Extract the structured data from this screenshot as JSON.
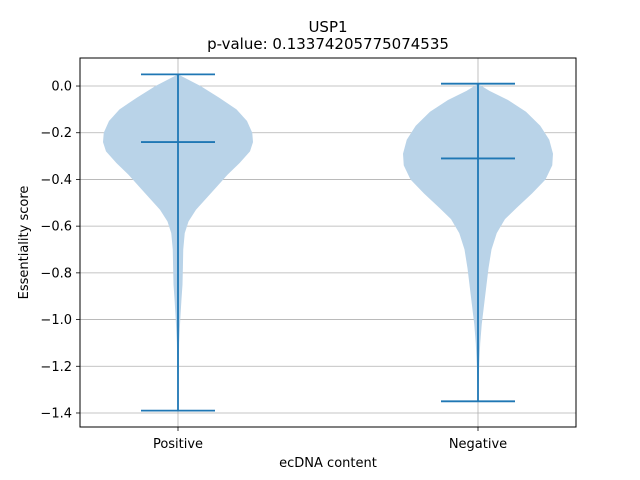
{
  "chart_data": {
    "type": "violin",
    "title": "USP1",
    "subtitle": "p-value: 0.13374205775074535",
    "xlabel": "ecDNA content",
    "ylabel": "Essentiality score",
    "ylim": [
      -1.46,
      0.12
    ],
    "yticks": [
      0.0,
      -0.2,
      -0.4,
      -0.6,
      -0.8,
      -1.0,
      -1.2,
      -1.4
    ],
    "ytick_labels": [
      "0.0",
      "−0.2",
      "−0.4",
      "−0.6",
      "−0.8",
      "−1.0",
      "−1.2",
      "−1.4"
    ],
    "categories": [
      "Positive",
      "Negative"
    ],
    "grid": true,
    "fill_color": "#b9d3e8",
    "line_color": "#1f77b4",
    "series": [
      {
        "category": "Positive",
        "max": 0.05,
        "median": -0.24,
        "min": -1.39,
        "density": [
          [
            0.05,
            0.0
          ],
          [
            0.03,
            0.12
          ],
          [
            0.0,
            0.3
          ],
          [
            -0.05,
            0.55
          ],
          [
            -0.1,
            0.78
          ],
          [
            -0.15,
            0.92
          ],
          [
            -0.2,
            0.99
          ],
          [
            -0.24,
            1.0
          ],
          [
            -0.28,
            0.96
          ],
          [
            -0.33,
            0.82
          ],
          [
            -0.38,
            0.66
          ],
          [
            -0.43,
            0.52
          ],
          [
            -0.48,
            0.38
          ],
          [
            -0.53,
            0.24
          ],
          [
            -0.58,
            0.14
          ],
          [
            -0.63,
            0.09
          ],
          [
            -0.7,
            0.07
          ],
          [
            -0.78,
            0.065
          ],
          [
            -0.85,
            0.06
          ],
          [
            -0.92,
            0.045
          ],
          [
            -1.0,
            0.03
          ],
          [
            -1.1,
            0.015
          ],
          [
            -1.2,
            0.01
          ],
          [
            -1.3,
            0.006
          ],
          [
            -1.39,
            0.003
          ]
        ]
      },
      {
        "category": "Negative",
        "max": 0.01,
        "median": -0.31,
        "min": -1.35,
        "density": [
          [
            0.01,
            0.0
          ],
          [
            -0.02,
            0.15
          ],
          [
            -0.06,
            0.4
          ],
          [
            -0.11,
            0.64
          ],
          [
            -0.17,
            0.83
          ],
          [
            -0.23,
            0.95
          ],
          [
            -0.29,
            1.0
          ],
          [
            -0.34,
            0.99
          ],
          [
            -0.4,
            0.9
          ],
          [
            -0.46,
            0.72
          ],
          [
            -0.52,
            0.52
          ],
          [
            -0.57,
            0.36
          ],
          [
            -0.63,
            0.25
          ],
          [
            -0.7,
            0.18
          ],
          [
            -0.78,
            0.14
          ],
          [
            -0.86,
            0.11
          ],
          [
            -0.94,
            0.08
          ],
          [
            -1.02,
            0.05
          ],
          [
            -1.1,
            0.03
          ],
          [
            -1.2,
            0.015
          ],
          [
            -1.28,
            0.008
          ],
          [
            -1.35,
            0.003
          ]
        ]
      }
    ]
  }
}
